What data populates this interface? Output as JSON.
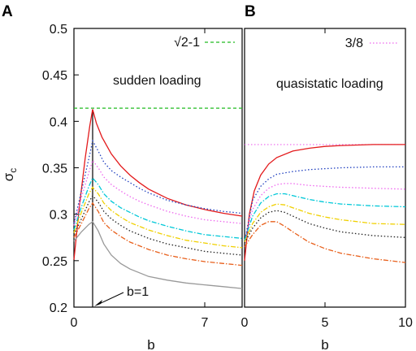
{
  "chart_data": [
    {
      "panel": "A",
      "type": "line",
      "title": "sudden loading",
      "xlabel": "b",
      "ylabel": "σc",
      "xlim": [
        0,
        9
      ],
      "ylim": [
        0.2,
        0.5
      ],
      "x_ticks": [
        "0",
        "7"
      ],
      "y_ticks": [
        "0.5",
        "0.45",
        "0.4",
        "0.35",
        "0.3",
        "0.25",
        "0.2"
      ],
      "grid": false,
      "legend_position": "top-right",
      "reference_line": {
        "label": "√2-1",
        "value": 0.4142,
        "color": "#22bb22"
      },
      "annotation": {
        "text": "b=1",
        "x": 1,
        "y": 0.2
      },
      "series": [
        {
          "color": "#e31a1c",
          "style": "solid",
          "points": [
            [
              0,
              0.251
            ],
            [
              0.3,
              0.31
            ],
            [
              0.6,
              0.36
            ],
            [
              0.85,
              0.395
            ],
            [
              1,
              0.413
            ],
            [
              1.2,
              0.398
            ],
            [
              1.5,
              0.383
            ],
            [
              2,
              0.365
            ],
            [
              2.5,
              0.352
            ],
            [
              3,
              0.342
            ],
            [
              3.5,
              0.334
            ],
            [
              4,
              0.327
            ],
            [
              5,
              0.317
            ],
            [
              6,
              0.31
            ],
            [
              7,
              0.305
            ],
            [
              8,
              0.301
            ],
            [
              9,
              0.298
            ]
          ]
        },
        {
          "color": "#1f3fbf",
          "style": "dotted",
          "points": [
            [
              0,
              0.29
            ],
            [
              0.4,
              0.325
            ],
            [
              0.8,
              0.36
            ],
            [
              1,
              0.379
            ],
            [
              1.3,
              0.368
            ],
            [
              1.6,
              0.356
            ],
            [
              2,
              0.347
            ],
            [
              2.5,
              0.34
            ],
            [
              3,
              0.334
            ],
            [
              3.5,
              0.328
            ],
            [
              4,
              0.323
            ],
            [
              5,
              0.315
            ],
            [
              6,
              0.31
            ],
            [
              7,
              0.306
            ],
            [
              8,
              0.303
            ],
            [
              9,
              0.301
            ]
          ]
        },
        {
          "color": "#ee66ee",
          "style": "dotted",
          "points": [
            [
              0,
              0.288
            ],
            [
              0.4,
              0.318
            ],
            [
              0.8,
              0.345
            ],
            [
              1,
              0.358
            ],
            [
              1.3,
              0.35
            ],
            [
              1.6,
              0.34
            ],
            [
              2,
              0.332
            ],
            [
              2.5,
              0.325
            ],
            [
              3,
              0.319
            ],
            [
              3.5,
              0.314
            ],
            [
              4,
              0.31
            ],
            [
              5,
              0.303
            ],
            [
              6,
              0.298
            ],
            [
              7,
              0.294
            ],
            [
              8,
              0.292
            ],
            [
              9,
              0.29
            ]
          ]
        },
        {
          "color": "#00c8d8",
          "style": "dashdot",
          "points": [
            [
              0,
              0.283
            ],
            [
              0.4,
              0.308
            ],
            [
              0.8,
              0.33
            ],
            [
              1,
              0.339
            ],
            [
              1.3,
              0.332
            ],
            [
              1.6,
              0.322
            ],
            [
              2,
              0.314
            ],
            [
              2.5,
              0.307
            ],
            [
              3,
              0.302
            ],
            [
              3.5,
              0.297
            ],
            [
              4,
              0.293
            ],
            [
              5,
              0.287
            ],
            [
              6,
              0.282
            ],
            [
              7,
              0.278
            ],
            [
              8,
              0.276
            ],
            [
              9,
              0.274
            ]
          ]
        },
        {
          "color": "#f0d000",
          "style": "dashdot",
          "points": [
            [
              0,
              0.28
            ],
            [
              0.4,
              0.302
            ],
            [
              0.8,
              0.322
            ],
            [
              1,
              0.329
            ],
            [
              1.3,
              0.322
            ],
            [
              1.6,
              0.312
            ],
            [
              2,
              0.304
            ],
            [
              2.5,
              0.297
            ],
            [
              3,
              0.291
            ],
            [
              3.5,
              0.287
            ],
            [
              4,
              0.283
            ],
            [
              5,
              0.277
            ],
            [
              6,
              0.272
            ],
            [
              7,
              0.269
            ],
            [
              8,
              0.266
            ],
            [
              9,
              0.264
            ]
          ]
        },
        {
          "color": "#222222",
          "style": "dotted",
          "points": [
            [
              0,
              0.278
            ],
            [
              0.4,
              0.295
            ],
            [
              0.8,
              0.313
            ],
            [
              1,
              0.32
            ],
            [
              1.3,
              0.313
            ],
            [
              1.6,
              0.303
            ],
            [
              2,
              0.295
            ],
            [
              2.5,
              0.288
            ],
            [
              3,
              0.282
            ],
            [
              3.5,
              0.278
            ],
            [
              4,
              0.274
            ],
            [
              5,
              0.268
            ],
            [
              6,
              0.264
            ],
            [
              7,
              0.26
            ],
            [
              8,
              0.258
            ],
            [
              9,
              0.256
            ]
          ]
        },
        {
          "color": "#e8601c",
          "style": "dashdot",
          "points": [
            [
              0,
              0.275
            ],
            [
              0.4,
              0.29
            ],
            [
              0.8,
              0.306
            ],
            [
              1,
              0.312
            ],
            [
              1.3,
              0.303
            ],
            [
              1.6,
              0.291
            ],
            [
              2,
              0.283
            ],
            [
              2.5,
              0.276
            ],
            [
              3,
              0.27
            ],
            [
              3.5,
              0.266
            ],
            [
              4,
              0.262
            ],
            [
              5,
              0.256
            ],
            [
              6,
              0.252
            ],
            [
              7,
              0.249
            ],
            [
              8,
              0.247
            ],
            [
              9,
              0.245
            ]
          ]
        },
        {
          "color": "#999999",
          "style": "solid",
          "points": [
            [
              0,
              0.271
            ],
            [
              0.4,
              0.281
            ],
            [
              0.8,
              0.289
            ],
            [
              1,
              0.292
            ],
            [
              1.3,
              0.282
            ],
            [
              1.6,
              0.268
            ],
            [
              2,
              0.256
            ],
            [
              2.5,
              0.247
            ],
            [
              3,
              0.241
            ],
            [
              3.5,
              0.237
            ],
            [
              4,
              0.233
            ],
            [
              5,
              0.229
            ],
            [
              6,
              0.226
            ],
            [
              7,
              0.224
            ],
            [
              8,
              0.222
            ],
            [
              9,
              0.22
            ]
          ]
        }
      ]
    },
    {
      "panel": "B",
      "type": "line",
      "title": "quasistatic loading",
      "xlabel": "b",
      "ylabel": "",
      "xlim": [
        0,
        10
      ],
      "ylim": [
        0.2,
        0.5
      ],
      "x_ticks": [
        "0",
        "5",
        "10"
      ],
      "grid": false,
      "legend_position": "top-right",
      "reference_line": {
        "label": "3/8",
        "value": 0.375,
        "color": "#ee66ee"
      },
      "series": [
        {
          "color": "#e31a1c",
          "style": "solid",
          "points": [
            [
              0,
              0.25
            ],
            [
              0.3,
              0.3
            ],
            [
              0.6,
              0.325
            ],
            [
              1,
              0.342
            ],
            [
              1.5,
              0.354
            ],
            [
              2,
              0.361
            ],
            [
              3,
              0.368
            ],
            [
              4,
              0.371
            ],
            [
              5,
              0.373
            ],
            [
              6,
              0.374
            ],
            [
              7,
              0.3745
            ],
            [
              8,
              0.375
            ],
            [
              10,
              0.375
            ]
          ]
        },
        {
          "color": "#1f3fbf",
          "style": "dotted",
          "points": [
            [
              0,
              0.27
            ],
            [
              0.5,
              0.315
            ],
            [
              1,
              0.33
            ],
            [
              1.5,
              0.338
            ],
            [
              2,
              0.343
            ],
            [
              3,
              0.346
            ],
            [
              4,
              0.348
            ],
            [
              5,
              0.349
            ],
            [
              6,
              0.35
            ],
            [
              8,
              0.351
            ],
            [
              10,
              0.351
            ]
          ]
        },
        {
          "color": "#ee66ee",
          "style": "dotted",
          "points": [
            [
              0,
              0.272
            ],
            [
              0.5,
              0.305
            ],
            [
              1,
              0.32
            ],
            [
              1.5,
              0.328
            ],
            [
              2,
              0.332
            ],
            [
              2.5,
              0.333
            ],
            [
              3,
              0.333
            ],
            [
              4,
              0.331
            ],
            [
              5,
              0.33
            ],
            [
              6,
              0.329
            ],
            [
              8,
              0.328
            ],
            [
              10,
              0.327
            ]
          ]
        },
        {
          "color": "#00c8d8",
          "style": "dashdot",
          "points": [
            [
              0,
              0.272
            ],
            [
              0.5,
              0.298
            ],
            [
              1,
              0.312
            ],
            [
              1.5,
              0.319
            ],
            [
              2,
              0.322
            ],
            [
              2.5,
              0.322
            ],
            [
              3,
              0.32
            ],
            [
              4,
              0.316
            ],
            [
              5,
              0.313
            ],
            [
              6,
              0.311
            ],
            [
              8,
              0.309
            ],
            [
              10,
              0.308
            ]
          ]
        },
        {
          "color": "#f0d000",
          "style": "dashdot",
          "points": [
            [
              0,
              0.27
            ],
            [
              0.5,
              0.29
            ],
            [
              1,
              0.302
            ],
            [
              1.5,
              0.308
            ],
            [
              2,
              0.311
            ],
            [
              2.5,
              0.31
            ],
            [
              3,
              0.307
            ],
            [
              4,
              0.301
            ],
            [
              5,
              0.297
            ],
            [
              6,
              0.294
            ],
            [
              8,
              0.29
            ],
            [
              10,
              0.289
            ]
          ]
        },
        {
          "color": "#222222",
          "style": "dotted",
          "points": [
            [
              0,
              0.269
            ],
            [
              0.5,
              0.285
            ],
            [
              1,
              0.296
            ],
            [
              1.5,
              0.302
            ],
            [
              2,
              0.304
            ],
            [
              2.5,
              0.302
            ],
            [
              3,
              0.298
            ],
            [
              4,
              0.29
            ],
            [
              5,
              0.285
            ],
            [
              6,
              0.281
            ],
            [
              8,
              0.277
            ],
            [
              10,
              0.275
            ]
          ]
        },
        {
          "color": "#e8601c",
          "style": "dashdot",
          "points": [
            [
              0,
              0.265
            ],
            [
              0.5,
              0.278
            ],
            [
              1,
              0.288
            ],
            [
              1.5,
              0.292
            ],
            [
              2,
              0.292
            ],
            [
              2.5,
              0.287
            ],
            [
              3,
              0.281
            ],
            [
              4,
              0.27
            ],
            [
              5,
              0.263
            ],
            [
              6,
              0.258
            ],
            [
              8,
              0.252
            ],
            [
              10,
              0.248
            ]
          ]
        }
      ]
    }
  ]
}
